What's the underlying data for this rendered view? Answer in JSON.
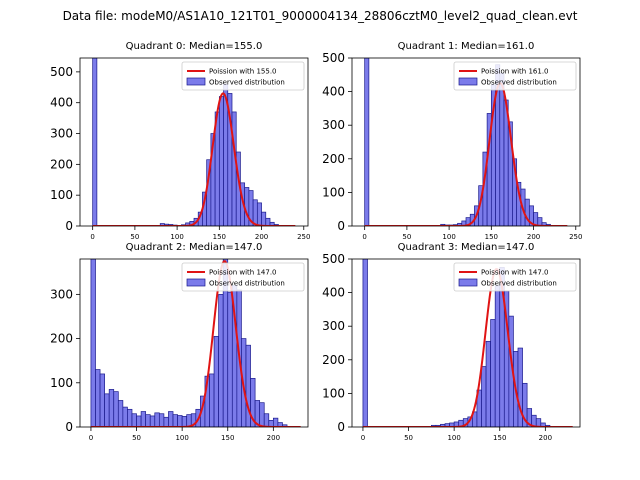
{
  "figure": {
    "suptitle": "Data file: modeM0/AS1A10_121T01_9000004134_28806cztM0_level2_quad_clean.evt"
  },
  "colors": {
    "bar_fill": "#7b7bea",
    "bar_edge": "#1a1a8c",
    "poisson_line": "#e01414",
    "axis": "#000000"
  },
  "chart_data": [
    {
      "type": "bar",
      "name": "quadrant-0",
      "title": "Quadrant 0: Median=155.0",
      "median": 155.0,
      "xlim": [
        -15,
        255
      ],
      "ylim": [
        0,
        545
      ],
      "xticks": [
        0,
        50,
        100,
        150,
        200,
        250
      ],
      "yticks": [
        0,
        100,
        200,
        300,
        400,
        500
      ],
      "bin_width": 5,
      "spike": {
        "x": 0,
        "value": 545
      },
      "bins": [
        [
          80,
          8
        ],
        [
          85,
          6
        ],
        [
          90,
          5
        ],
        [
          95,
          3
        ],
        [
          100,
          2
        ],
        [
          105,
          4
        ],
        [
          110,
          10
        ],
        [
          115,
          15
        ],
        [
          120,
          25
        ],
        [
          125,
          45
        ],
        [
          130,
          110
        ],
        [
          135,
          215
        ],
        [
          140,
          300
        ],
        [
          145,
          370
        ],
        [
          150,
          420
        ],
        [
          155,
          460
        ],
        [
          160,
          430
        ],
        [
          165,
          370
        ],
        [
          170,
          240
        ],
        [
          175,
          140
        ],
        [
          180,
          125
        ],
        [
          185,
          115
        ],
        [
          190,
          85
        ],
        [
          195,
          75
        ],
        [
          200,
          45
        ],
        [
          205,
          25
        ],
        [
          210,
          12
        ],
        [
          215,
          5
        ]
      ],
      "poisson": {
        "lambda": 155.0,
        "x_range": [
          0,
          240
        ],
        "peak_value": 430
      },
      "legend": {
        "line": "Poission with 155.0",
        "bars": "Observed distribution",
        "position": "upper right"
      }
    },
    {
      "type": "bar",
      "name": "quadrant-1",
      "title": "Quadrant 1: Median=161.0",
      "median": 161.0,
      "xlim": [
        -15,
        255
      ],
      "ylim": [
        0,
        500
      ],
      "xticks": [
        0,
        50,
        100,
        150,
        200,
        250
      ],
      "yticks": [
        0,
        100,
        200,
        300,
        400,
        500
      ],
      "bin_width": 5,
      "spike": {
        "x": 0,
        "value": 500
      },
      "bins": [
        [
          90,
          5
        ],
        [
          95,
          3
        ],
        [
          100,
          3
        ],
        [
          105,
          4
        ],
        [
          110,
          8
        ],
        [
          115,
          15
        ],
        [
          120,
          25
        ],
        [
          125,
          35
        ],
        [
          130,
          60
        ],
        [
          135,
          120
        ],
        [
          140,
          220
        ],
        [
          145,
          335
        ],
        [
          150,
          420
        ],
        [
          155,
          480
        ],
        [
          160,
          455
        ],
        [
          165,
          375
        ],
        [
          170,
          310
        ],
        [
          175,
          200
        ],
        [
          180,
          130
        ],
        [
          185,
          110
        ],
        [
          190,
          80
        ],
        [
          195,
          60
        ],
        [
          200,
          40
        ],
        [
          205,
          25
        ],
        [
          210,
          10
        ],
        [
          215,
          5
        ]
      ],
      "poisson": {
        "lambda": 161.0,
        "x_range": [
          0,
          240
        ],
        "peak_value": 425
      },
      "legend": {
        "line": "Poission with 161.0",
        "bars": "Observed distribution",
        "position": "upper right"
      }
    },
    {
      "type": "bar",
      "name": "quadrant-2",
      "title": "Quadrant 2: Median=147.0",
      "median": 147.0,
      "xlim": [
        -12,
        238
      ],
      "ylim": [
        0,
        380
      ],
      "xticks": [
        0,
        50,
        100,
        150,
        200
      ],
      "yticks": [
        0,
        100,
        200,
        300
      ],
      "bin_width": 5,
      "spike": {
        "x": 0,
        "value": 380
      },
      "bins": [
        [
          5,
          130
        ],
        [
          10,
          120
        ],
        [
          15,
          75
        ],
        [
          20,
          85
        ],
        [
          25,
          80
        ],
        [
          30,
          60
        ],
        [
          35,
          45
        ],
        [
          40,
          40
        ],
        [
          45,
          30
        ],
        [
          50,
          25
        ],
        [
          55,
          35
        ],
        [
          60,
          28
        ],
        [
          65,
          25
        ],
        [
          70,
          32
        ],
        [
          75,
          30
        ],
        [
          80,
          22
        ],
        [
          85,
          35
        ],
        [
          90,
          28
        ],
        [
          95,
          26
        ],
        [
          100,
          24
        ],
        [
          105,
          28
        ],
        [
          110,
          30
        ],
        [
          115,
          40
        ],
        [
          120,
          70
        ],
        [
          125,
          115
        ],
        [
          130,
          120
        ],
        [
          135,
          205
        ],
        [
          140,
          300
        ],
        [
          145,
          380
        ],
        [
          150,
          305
        ],
        [
          155,
          320
        ],
        [
          160,
          310
        ],
        [
          165,
          200
        ],
        [
          170,
          185
        ],
        [
          175,
          110
        ],
        [
          180,
          60
        ],
        [
          185,
          55
        ],
        [
          190,
          30
        ],
        [
          195,
          15
        ],
        [
          200,
          20
        ],
        [
          205,
          10
        ],
        [
          210,
          5
        ]
      ],
      "poisson": {
        "lambda": 147.0,
        "x_range": [
          0,
          230
        ],
        "peak_value": 375
      },
      "legend": {
        "line": "Poission with 147.0",
        "bars": "Observed distribution",
        "position": "upper right"
      }
    },
    {
      "type": "bar",
      "name": "quadrant-3",
      "title": "Quadrant 3: Median=147.0",
      "median": 147.0,
      "xlim": [
        -12,
        238
      ],
      "ylim": [
        0,
        500
      ],
      "xticks": [
        0,
        50,
        100,
        150,
        200
      ],
      "yticks": [
        0,
        100,
        200,
        300,
        400,
        500
      ],
      "bin_width": 5,
      "spike": {
        "x": 0,
        "value": 500
      },
      "bins": [
        [
          75,
          5
        ],
        [
          80,
          5
        ],
        [
          85,
          8
        ],
        [
          90,
          10
        ],
        [
          95,
          12
        ],
        [
          100,
          15
        ],
        [
          105,
          20
        ],
        [
          110,
          25
        ],
        [
          115,
          30
        ],
        [
          120,
          45
        ],
        [
          125,
          110
        ],
        [
          130,
          180
        ],
        [
          135,
          255
        ],
        [
          140,
          320
        ],
        [
          145,
          420
        ],
        [
          150,
          475
        ],
        [
          155,
          405
        ],
        [
          160,
          330
        ],
        [
          165,
          225
        ],
        [
          170,
          235
        ],
        [
          175,
          130
        ],
        [
          180,
          55
        ],
        [
          185,
          35
        ],
        [
          190,
          25
        ],
        [
          195,
          12
        ],
        [
          200,
          5
        ]
      ],
      "poisson": {
        "lambda": 147.0,
        "x_range": [
          0,
          230
        ],
        "peak_value": 470
      },
      "legend": {
        "line": "Poission with 147.0",
        "bars": "Observed distribution",
        "position": "upper right"
      }
    }
  ]
}
